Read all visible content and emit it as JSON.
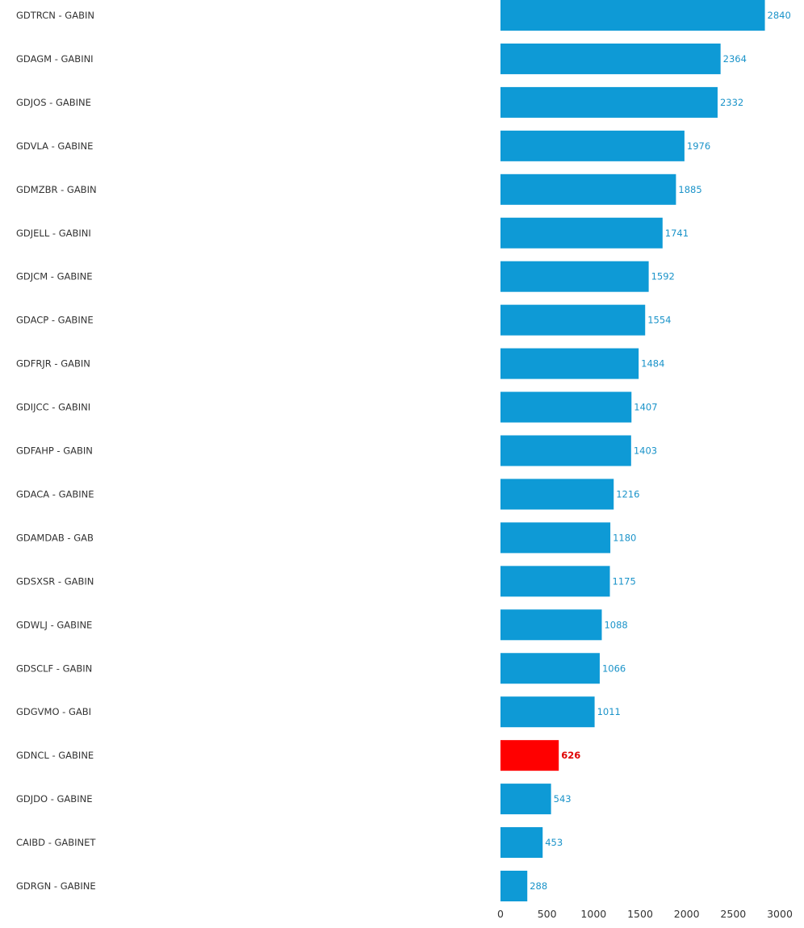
{
  "chart_data": {
    "type": "bar",
    "orientation": "horizontal",
    "categories": [
      "GDTRCN - GABIN",
      "GDAGM - GABINI",
      "GDJOS - GABINE",
      "GDVLA - GABINE",
      "GDMZBR - GABIN",
      "GDJELL - GABINI",
      "GDJCM - GABINE",
      "GDACP - GABINE",
      "GDFRJR - GABIN",
      "GDIJCC - GABINI",
      "GDFAHP - GABIN",
      "GDACA - GABINE",
      "GDAMDAB - GAB",
      "GDSXSR - GABIN",
      "GDWLJ - GABINE",
      "GDSCLF - GABIN",
      "GDGVMO - GABI",
      "GDNCL - GABINE",
      "GDJDO - GABINE",
      "CAIBD - GABINET",
      "GDRGN - GABINE"
    ],
    "values": [
      2840,
      2364,
      2332,
      1976,
      1885,
      1741,
      1592,
      1554,
      1484,
      1407,
      1403,
      1216,
      1180,
      1175,
      1088,
      1066,
      1011,
      626,
      543,
      453,
      288
    ],
    "value_labels": [
      "2840",
      "2364",
      "2332",
      "1976",
      "1885",
      "1741",
      "1592",
      "1554",
      "1484",
      "1407",
      "1403",
      "1216",
      "1180",
      "1175",
      "1088",
      "1066",
      "1011",
      "626",
      "543",
      "453",
      "288"
    ],
    "highlight_index": 17,
    "colors": {
      "bar": "#0e9ad6",
      "highlight": "#ff0000",
      "value_label": "#1a93c9",
      "highlight_label": "#e00000"
    },
    "xlim": [
      0,
      3000
    ],
    "x_ticks": [
      0,
      500,
      1000,
      1500,
      2000,
      2500,
      3000
    ],
    "x_tick_labels": [
      "0",
      "500",
      "1000",
      "1500",
      "2000",
      "2500",
      "3000"
    ],
    "grid": false,
    "legend": "none"
  }
}
